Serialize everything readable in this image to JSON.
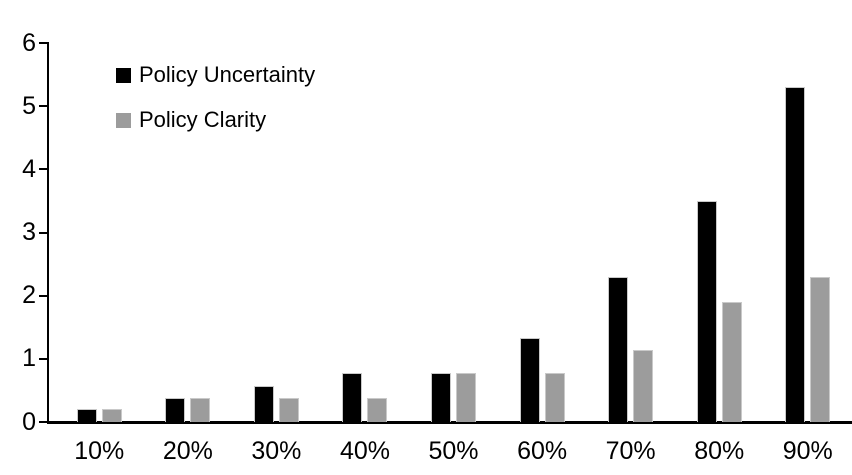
{
  "chart_data": {
    "type": "bar",
    "title": "",
    "xlabel": "",
    "ylabel": "",
    "categories": [
      "10%",
      "20%",
      "30%",
      "40%",
      "50%",
      "60%",
      "70%",
      "80%",
      "90%"
    ],
    "series": [
      {
        "name": "Policy Uncertainty",
        "color": "#000000",
        "values": [
          0.2,
          0.38,
          0.57,
          0.77,
          0.78,
          1.33,
          2.3,
          3.5,
          5.3
        ]
      },
      {
        "name": "Policy Clarity",
        "color": "#9c9c9c",
        "values": [
          0.2,
          0.38,
          0.38,
          0.38,
          0.77,
          0.77,
          1.14,
          1.9,
          2.3
        ]
      }
    ],
    "ylim": [
      0,
      6
    ],
    "yticks": [
      0,
      1,
      2,
      3,
      4,
      5,
      6
    ],
    "grid": false,
    "legend_position": "top-left-inside",
    "axis_color": "#000000",
    "background_color": "#ffffff"
  }
}
